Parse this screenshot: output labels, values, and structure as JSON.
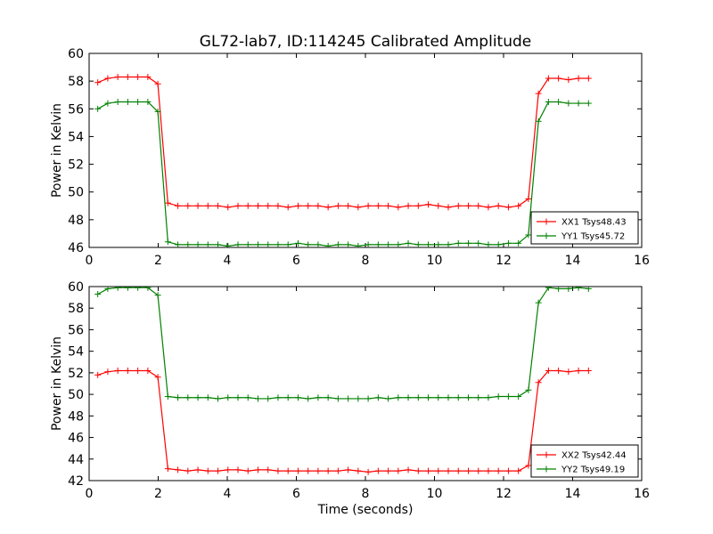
{
  "chart_data": [
    {
      "type": "line",
      "title": "GL72-lab7, ID:114245 Calibrated Amplitude",
      "xlabel": "",
      "ylabel": "Power in Kelvin",
      "xlim": [
        0,
        16
      ],
      "ylim": [
        46,
        60
      ],
      "xticks": [
        0,
        2,
        4,
        6,
        8,
        10,
        12,
        14,
        16
      ],
      "yticks": [
        46,
        48,
        50,
        52,
        54,
        56,
        58,
        60
      ],
      "legend_position": "lower-right",
      "x": [
        0.25,
        0.54,
        0.83,
        1.12,
        1.41,
        1.7,
        1.99,
        2.28,
        2.57,
        2.86,
        3.15,
        3.44,
        3.73,
        4.02,
        4.31,
        4.6,
        4.89,
        5.18,
        5.47,
        5.76,
        6.05,
        6.34,
        6.63,
        6.92,
        7.21,
        7.5,
        7.79,
        8.08,
        8.37,
        8.66,
        8.95,
        9.24,
        9.53,
        9.82,
        10.11,
        10.4,
        10.69,
        10.98,
        11.27,
        11.56,
        11.85,
        12.14,
        12.43,
        12.72,
        13.01,
        13.3,
        13.59,
        13.88,
        14.17,
        14.46
      ],
      "series": [
        {
          "name": "XX1 Tsys48.43",
          "color": "#ff0000",
          "values": [
            57.9,
            58.2,
            58.3,
            58.3,
            58.3,
            58.3,
            57.8,
            49.2,
            49.0,
            49.0,
            49.0,
            49.0,
            49.0,
            48.9,
            49.0,
            49.0,
            49.0,
            49.0,
            49.0,
            48.9,
            49.0,
            49.0,
            49.0,
            48.9,
            49.0,
            49.0,
            48.9,
            49.0,
            49.0,
            49.0,
            48.9,
            49.0,
            49.0,
            49.1,
            49.0,
            48.9,
            49.0,
            49.0,
            49.0,
            48.9,
            49.0,
            48.9,
            49.0,
            49.5,
            57.1,
            58.2,
            58.2,
            58.1,
            58.2,
            58.2
          ]
        },
        {
          "name": "YY1 Tsys45.72",
          "color": "#008000",
          "values": [
            56.0,
            56.4,
            56.5,
            56.5,
            56.5,
            56.5,
            55.8,
            46.4,
            46.2,
            46.2,
            46.2,
            46.2,
            46.2,
            46.1,
            46.2,
            46.2,
            46.2,
            46.2,
            46.2,
            46.2,
            46.3,
            46.2,
            46.2,
            46.1,
            46.2,
            46.2,
            46.1,
            46.2,
            46.2,
            46.2,
            46.2,
            46.3,
            46.2,
            46.2,
            46.2,
            46.2,
            46.3,
            46.3,
            46.3,
            46.2,
            46.2,
            46.3,
            46.3,
            46.9,
            55.1,
            56.5,
            56.5,
            56.4,
            56.4,
            56.4
          ]
        }
      ]
    },
    {
      "type": "line",
      "title": "",
      "xlabel": "Time (seconds)",
      "ylabel": "Power in Kelvin",
      "xlim": [
        0,
        16
      ],
      "ylim": [
        42,
        60
      ],
      "xticks": [
        0,
        2,
        4,
        6,
        8,
        10,
        12,
        14,
        16
      ],
      "yticks": [
        42,
        44,
        46,
        48,
        50,
        52,
        54,
        56,
        58,
        60
      ],
      "legend_position": "lower-right",
      "x": [
        0.25,
        0.54,
        0.83,
        1.12,
        1.41,
        1.7,
        1.99,
        2.28,
        2.57,
        2.86,
        3.15,
        3.44,
        3.73,
        4.02,
        4.31,
        4.6,
        4.89,
        5.18,
        5.47,
        5.76,
        6.05,
        6.34,
        6.63,
        6.92,
        7.21,
        7.5,
        7.79,
        8.08,
        8.37,
        8.66,
        8.95,
        9.24,
        9.53,
        9.82,
        10.11,
        10.4,
        10.69,
        10.98,
        11.27,
        11.56,
        11.85,
        12.14,
        12.43,
        12.72,
        13.01,
        13.3,
        13.59,
        13.88,
        14.17,
        14.46
      ],
      "series": [
        {
          "name": "XX2 Tsys42.44",
          "color": "#ff0000",
          "values": [
            51.8,
            52.1,
            52.2,
            52.2,
            52.2,
            52.2,
            51.6,
            43.1,
            43.0,
            42.9,
            43.0,
            42.9,
            42.9,
            43.0,
            43.0,
            42.9,
            43.0,
            43.0,
            42.9,
            42.9,
            42.9,
            42.9,
            42.9,
            42.9,
            42.9,
            43.0,
            42.9,
            42.8,
            42.9,
            42.9,
            42.9,
            43.0,
            42.9,
            42.9,
            42.9,
            42.9,
            42.9,
            42.9,
            42.9,
            42.9,
            42.9,
            42.9,
            42.9,
            43.4,
            51.1,
            52.2,
            52.2,
            52.1,
            52.2,
            52.2
          ]
        },
        {
          "name": "YY2 Tsys49.19",
          "color": "#008000",
          "values": [
            59.3,
            59.8,
            59.9,
            59.9,
            59.9,
            59.9,
            59.2,
            49.8,
            49.7,
            49.7,
            49.7,
            49.7,
            49.6,
            49.7,
            49.7,
            49.7,
            49.6,
            49.6,
            49.7,
            49.7,
            49.7,
            49.6,
            49.7,
            49.7,
            49.6,
            49.6,
            49.6,
            49.6,
            49.7,
            49.6,
            49.7,
            49.7,
            49.7,
            49.7,
            49.7,
            49.7,
            49.7,
            49.7,
            49.7,
            49.7,
            49.8,
            49.8,
            49.8,
            50.4,
            58.5,
            59.9,
            59.8,
            59.8,
            59.9,
            59.8
          ]
        }
      ]
    }
  ]
}
